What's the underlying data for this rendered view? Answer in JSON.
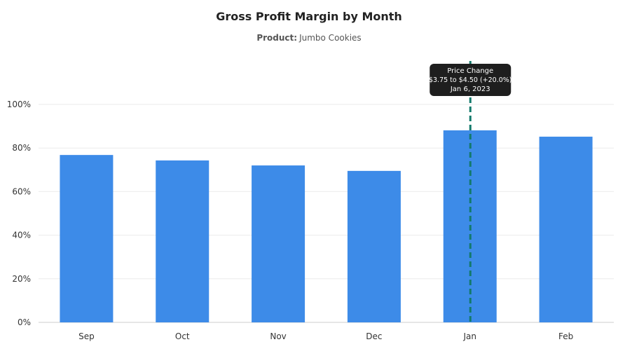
{
  "chart_data": {
    "type": "bar",
    "title": "Gross Profit Margin by Month",
    "subtitle_label": "Product:",
    "subtitle_value": "Jumbo Cookies",
    "categories": [
      "Sep",
      "Oct",
      "Nov",
      "Dec",
      "Jan",
      "Feb"
    ],
    "values": [
      76.8,
      74.3,
      72.0,
      69.5,
      88.1,
      85.2
    ],
    "ylim": [
      0,
      100
    ],
    "yticks": [
      "0%",
      "20%",
      "40%",
      "60%",
      "80%",
      "100%"
    ],
    "grid": true,
    "bar_color": "#3d8be8",
    "annotation": {
      "category": "Jan",
      "line_color": "#137a6c",
      "title": "Price Change",
      "line1": "$3.75 to $4.50 (+20.0%)",
      "line2": "Jan 6, 2023"
    }
  }
}
